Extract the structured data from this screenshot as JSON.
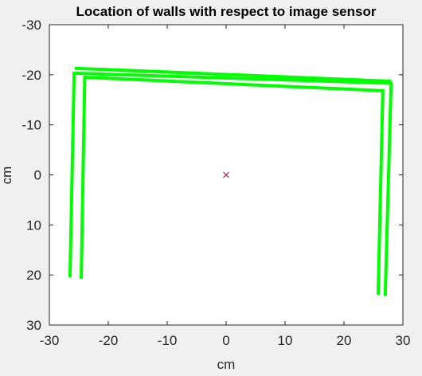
{
  "chart_data": {
    "type": "line",
    "title": "Location of walls with respect to image sensor",
    "xlabel": "cm",
    "ylabel": "cm",
    "xlim": [
      -30,
      30
    ],
    "ylim": [
      -30,
      30
    ],
    "y_reversed": true,
    "xticks": [
      -30,
      -20,
      -10,
      0,
      10,
      20,
      30
    ],
    "yticks": [
      -30,
      -20,
      -10,
      0,
      10,
      20,
      30
    ],
    "xtick_labels": [
      "-30",
      "-20",
      "-10",
      "0",
      "10",
      "20",
      "30"
    ],
    "ytick_labels": [
      "-30",
      "-20",
      "-10",
      "0",
      "10",
      "20",
      "30"
    ],
    "grid": false,
    "colors": {
      "walls": "#00ff00",
      "sensor": "#a2142f",
      "axes": "#262626",
      "plot_bg": "#ffffff",
      "figure_bg": "#f0f0f0"
    },
    "walls": [
      {
        "x": [
          -26.5,
          -25.8,
          28.0,
          27.0
        ],
        "y": [
          20.5,
          -20.3,
          -18.3,
          24.2
        ]
      },
      {
        "x": [
          -24.6,
          -24.0,
          26.6,
          25.8
        ],
        "y": [
          20.8,
          -19.5,
          -16.8,
          24.0
        ]
      },
      {
        "x": [
          -25.7,
          28.0
        ],
        "y": [
          -21.3,
          -18.7
        ]
      }
    ],
    "sensor_marker": {
      "x": 0,
      "y": 0,
      "symbol": "x"
    }
  }
}
